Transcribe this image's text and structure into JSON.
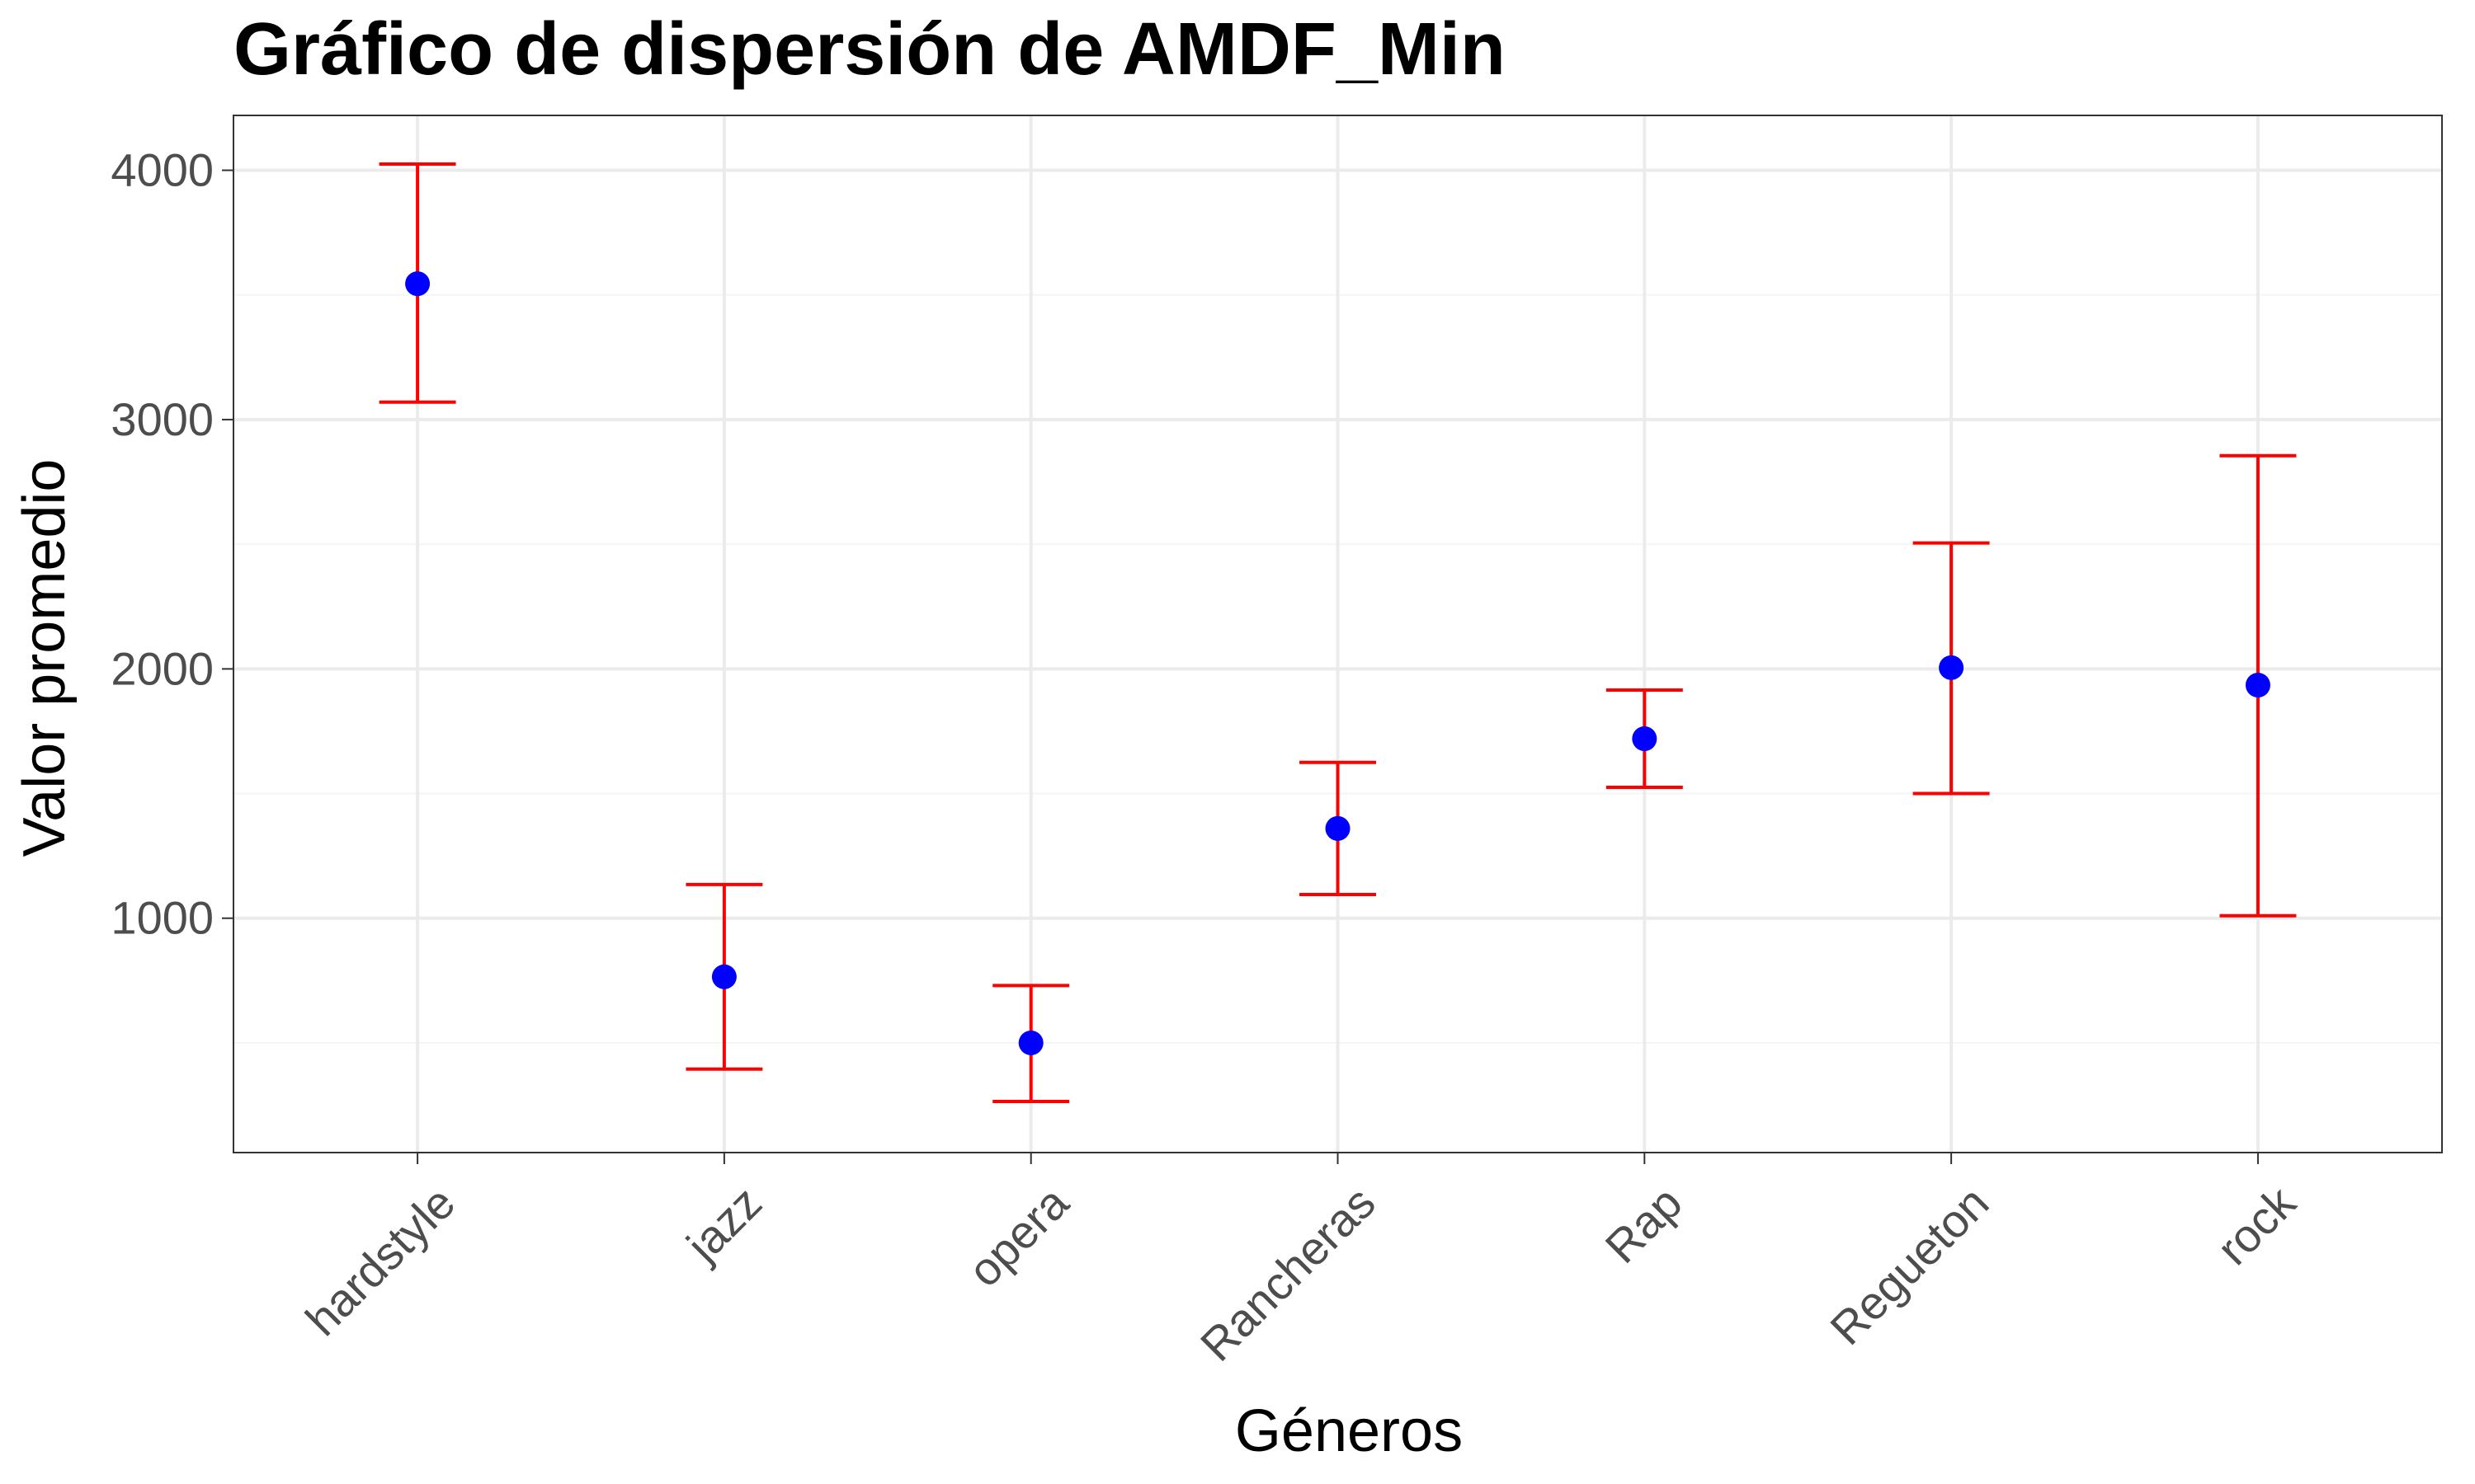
{
  "chart_data": {
    "type": "scatter",
    "title": "Gráfico de dispersión de AMDF_Min",
    "xlabel": "Géneros",
    "ylabel": "Valor promedio",
    "categories": [
      "hardstyle",
      "jazz",
      "opera",
      "Rancheras",
      "Rap",
      "Regueton",
      "rock"
    ],
    "series": [
      {
        "values": [
          3545,
          765,
          500,
          1360,
          1720,
          2005,
          1935
        ],
        "lower": [
          3070,
          395,
          265,
          1095,
          1525,
          1500,
          1010
        ],
        "upper": [
          4025,
          1135,
          730,
          1625,
          1915,
          2505,
          2855
        ]
      }
    ],
    "ylim": [
      60,
      4220
    ],
    "yticks": [
      1000,
      2000,
      3000,
      4000
    ],
    "ytick_labels": [
      "1000",
      "2000",
      "3000",
      "4000"
    ],
    "minor_yticks": [
      500,
      1500,
      2500,
      3500
    ],
    "grid": true,
    "legend": "none",
    "colors": {
      "point": "#0000ff",
      "errorbar": "#ff0000",
      "grid_major": "#ebebeb",
      "grid_minor": "#f5f5f5",
      "panel_border": "#333333"
    }
  }
}
